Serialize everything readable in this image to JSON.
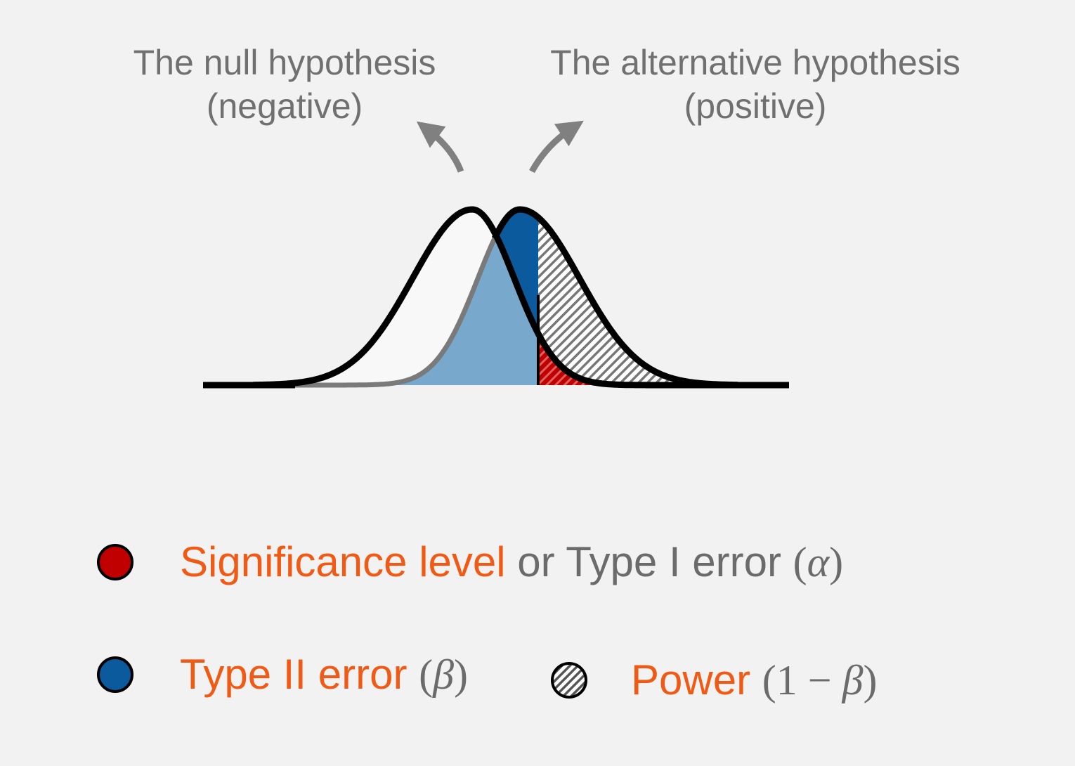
{
  "labels": {
    "null_line1": "The null hypothesis",
    "null_line2": "(negative)",
    "alt_line1": "The alternative hypothesis",
    "alt_line2": "(positive)"
  },
  "legend": {
    "alpha": {
      "accent_text": "Significance level",
      "muted_text": " or Type I error ",
      "open_paren": "(",
      "symbol": "α",
      "close_paren": ")",
      "color": "#c00000"
    },
    "beta": {
      "accent_text": "Type II error ",
      "open_paren": "(",
      "symbol": "β",
      "close_paren": ")",
      "color": "#0b5a9e"
    },
    "power": {
      "accent_text": "Power ",
      "open_paren": "(1 − ",
      "symbol": "β",
      "close_paren": ")",
      "pattern": "hatched"
    }
  },
  "colors": {
    "background": "#f2f2f2",
    "accent_text": "#f05a14",
    "muted_text": "#6b6b6b",
    "type1_red": "#c00000",
    "type2_blue": "#0b5a9e",
    "null_fill_blue": "#78a8cc",
    "arrow_gray": "#808080"
  }
}
